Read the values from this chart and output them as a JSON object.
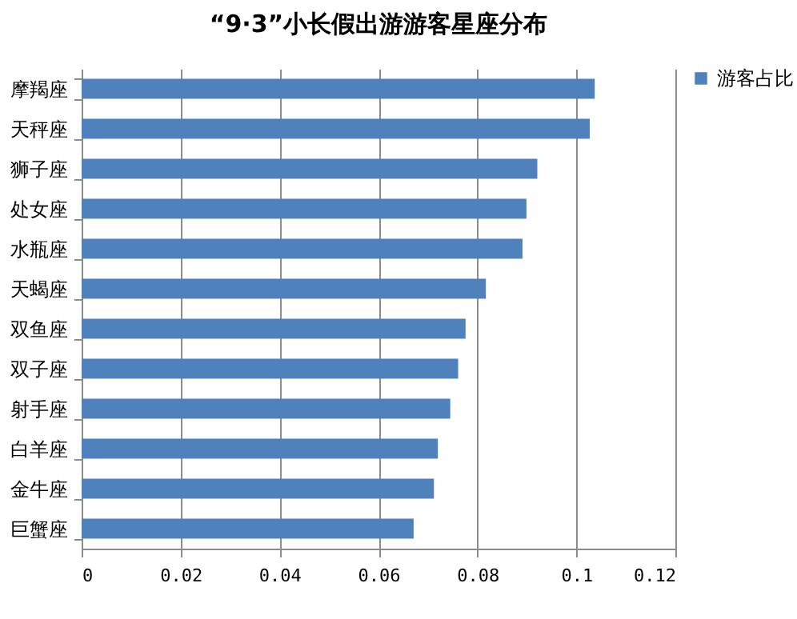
{
  "chart_data": {
    "type": "bar",
    "orientation": "horizontal",
    "title": "“9·3”小长假出游游客星座分布",
    "categories": [
      "摩羯座",
      "天秤座",
      "狮子座",
      "处女座",
      "水瓶座",
      "天蝎座",
      "双鱼座",
      "双子座",
      "射手座",
      "白羊座",
      "金牛座",
      "巨蟹座"
    ],
    "series": [
      {
        "name": "游客占比",
        "color": "#4f81bd",
        "values": [
          0.1037,
          0.1027,
          0.0921,
          0.0899,
          0.0891,
          0.0817,
          0.0776,
          0.0761,
          0.0745,
          0.072,
          0.0712,
          0.0671
        ]
      }
    ],
    "xlim": [
      0,
      0.12
    ],
    "xticks": [
      0,
      0.02,
      0.04,
      0.06,
      0.08,
      0.1,
      0.12
    ],
    "grid": "x",
    "legend": "right"
  }
}
